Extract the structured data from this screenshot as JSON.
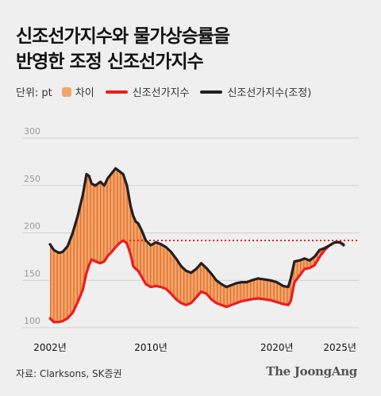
{
  "title_line1": "신조선가지수와 물가상승률을",
  "title_line2": "반영한 조정 신조선가지수",
  "legend": {
    "unit": "단위: pt",
    "diff": "차이",
    "nominal": "신조선가지수",
    "adjusted": "신조선가지수(조정)"
  },
  "colors": {
    "diff": "#f2a56b",
    "diff_hatch": "#e06e2a",
    "nominal": "#ee1c1c",
    "adjusted": "#231f20",
    "reference": "#ee1c1c",
    "grid": "#cfcfcf"
  },
  "source": "자료: Clarksons, SK증권",
  "logo": "The JoongAng",
  "chart_data": {
    "type": "line",
    "xlim": [
      2002,
      2026.5
    ],
    "ylim": [
      100,
      300
    ],
    "yticks": [
      {
        "value": 100,
        "label": "100"
      },
      {
        "value": 150,
        "label": "150"
      },
      {
        "value": 200,
        "label": "200"
      },
      {
        "value": 250,
        "label": "250"
      },
      {
        "value": 300,
        "label": "300"
      }
    ],
    "xticks": [
      {
        "value": 2002,
        "label": "2002년"
      },
      {
        "value": 2010,
        "label": "2010년"
      },
      {
        "value": 2020,
        "label": "2020년"
      },
      {
        "value": 2025,
        "label": "2025년"
      }
    ],
    "reference_line": {
      "y": 192,
      "x_from": 2008.3,
      "style": "dotted"
    },
    "series": [
      {
        "key": "adjusted",
        "x": [
          2002.0,
          2002.3,
          2002.7,
          2003.0,
          2003.4,
          2003.8,
          2004.2,
          2004.6,
          2004.9,
          2005.1,
          2005.3,
          2005.6,
          2006.0,
          2006.3,
          2006.6,
          2006.9,
          2007.2,
          2007.5,
          2007.8,
          2008.1,
          2008.4,
          2008.6,
          2008.8,
          2009.0,
          2009.3,
          2009.6,
          2010.0,
          2010.4,
          2010.8,
          2011.2,
          2011.6,
          2012.0,
          2012.4,
          2012.8,
          2013.2,
          2013.6,
          2014.0,
          2014.4,
          2014.8,
          2015.2,
          2015.6,
          2016.0,
          2016.4,
          2016.8,
          2017.2,
          2017.6,
          2018.0,
          2018.5,
          2019.0,
          2019.5,
          2020.0,
          2020.5,
          2020.9,
          2021.1,
          2021.4,
          2021.8,
          2022.2,
          2022.6,
          2023.0,
          2023.4,
          2023.8,
          2024.2,
          2024.6,
          2025.0,
          2025.3
        ],
        "y": [
          188,
          182,
          179,
          180,
          186,
          200,
          218,
          240,
          262,
          260,
          252,
          250,
          254,
          250,
          258,
          263,
          268,
          265,
          262,
          250,
          228,
          218,
          212,
          210,
          202,
          192,
          187,
          190,
          188,
          185,
          180,
          173,
          165,
          160,
          158,
          162,
          168,
          163,
          157,
          150,
          146,
          143,
          145,
          147,
          148,
          148,
          150,
          152,
          151,
          150,
          148,
          144,
          143,
          152,
          170,
          171,
          173,
          171,
          175,
          182,
          184,
          187,
          190,
          190,
          187
        ]
      },
      {
        "key": "nominal",
        "x": [
          2002.0,
          2002.3,
          2002.7,
          2003.0,
          2003.4,
          2003.8,
          2004.2,
          2004.6,
          2004.9,
          2005.1,
          2005.3,
          2005.6,
          2006.0,
          2006.3,
          2006.6,
          2006.9,
          2007.2,
          2007.5,
          2007.8,
          2008.1,
          2008.4,
          2008.6,
          2008.8,
          2009.0,
          2009.3,
          2009.6,
          2010.0,
          2010.4,
          2010.8,
          2011.2,
          2011.6,
          2012.0,
          2012.4,
          2012.8,
          2013.2,
          2013.6,
          2014.0,
          2014.4,
          2014.8,
          2015.2,
          2015.6,
          2016.0,
          2016.4,
          2016.8,
          2017.2,
          2017.6,
          2018.0,
          2018.5,
          2019.0,
          2019.5,
          2020.0,
          2020.5,
          2020.9,
          2021.1,
          2021.4,
          2021.8,
          2022.2,
          2022.6,
          2023.0,
          2023.4,
          2023.8,
          2024.2,
          2024.6,
          2025.0,
          2025.3
        ],
        "y": [
          110,
          106,
          106,
          107,
          110,
          116,
          127,
          140,
          158,
          166,
          172,
          170,
          168,
          170,
          176,
          180,
          185,
          189,
          192,
          189,
          177,
          165,
          162,
          160,
          153,
          146,
          143,
          144,
          143,
          141,
          136,
          130,
          126,
          124,
          126,
          132,
          138,
          136,
          130,
          126,
          124,
          122,
          124,
          126,
          128,
          129,
          130,
          131,
          130,
          129,
          127,
          125,
          124,
          128,
          148,
          155,
          162,
          163,
          166,
          175,
          182,
          187,
          190,
          190,
          188
        ]
      }
    ]
  }
}
